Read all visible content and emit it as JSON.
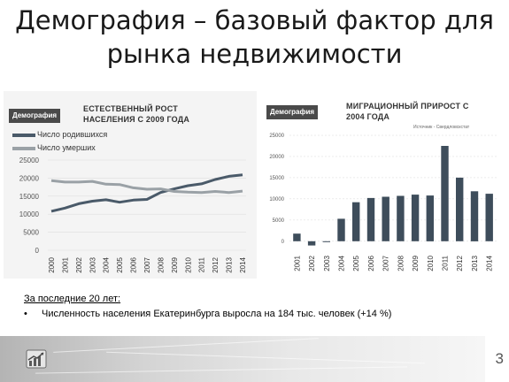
{
  "slide": {
    "title_line1": "Демография – базовый фактор для",
    "title_line2": "рынка недвижимости",
    "page_number": "3"
  },
  "left_chart": {
    "badge": "Демография",
    "title_line1": "ЕСТЕСТВЕННЫЙ РОСТ",
    "title_line2": "НАСЕЛЕНИЯ С 2009 ГОДА"
  },
  "right_chart": {
    "badge": "Демография",
    "title_line1": "МИГРАЦИОННЫЙ ПРИРОСТ С",
    "title_line2": "2004 ГОДА",
    "source": "Источник - Свердловскстат"
  },
  "notes": {
    "heading": "За последние 20 лет:",
    "bullet": "•",
    "item1": "Численность населения Екатеринбурга выросла на 184 тыс. человек (+14 %)"
  },
  "colors": {
    "births": "#4a5a69",
    "deaths": "#9aa1a6",
    "bars": "#3e4d5b"
  },
  "icons": {
    "footer_logo": "bar-chart-arrow-icon"
  },
  "chart_data": [
    {
      "type": "line",
      "categories": [
        "2000",
        "2001",
        "2002",
        "2003",
        "2004",
        "2005",
        "2006",
        "2007",
        "2008",
        "2009",
        "2010",
        "2011",
        "2012",
        "2013",
        "2014"
      ],
      "series": [
        {
          "name": "Число родившихся",
          "values": [
            10800,
            11700,
            12900,
            13600,
            14000,
            13300,
            13900,
            14100,
            16000,
            17000,
            17900,
            18400,
            19600,
            20500,
            20900
          ]
        },
        {
          "name": "Число умерших",
          "values": [
            19300,
            18900,
            18900,
            19100,
            18300,
            18200,
            17300,
            16900,
            17000,
            16300,
            16100,
            16000,
            16300,
            16000,
            16400
          ]
        }
      ],
      "yticks": [
        0,
        5000,
        10000,
        15000,
        20000,
        25000
      ],
      "ylim": [
        0,
        25000
      ],
      "legend": "top-left"
    },
    {
      "type": "bar",
      "categories": [
        "2001",
        "2002",
        "2003",
        "2004",
        "2005",
        "2006",
        "2007",
        "2008",
        "2009",
        "2010",
        "2011",
        "2012",
        "2013",
        "2014"
      ],
      "values": [
        1800,
        -1000,
        -200,
        5300,
        9200,
        10200,
        10500,
        10700,
        11000,
        10800,
        22500,
        15000,
        11800,
        11200
      ],
      "yticks": [
        0,
        5000,
        10000,
        15000,
        20000,
        25000
      ],
      "ylim": [
        -2000,
        25000
      ]
    }
  ]
}
